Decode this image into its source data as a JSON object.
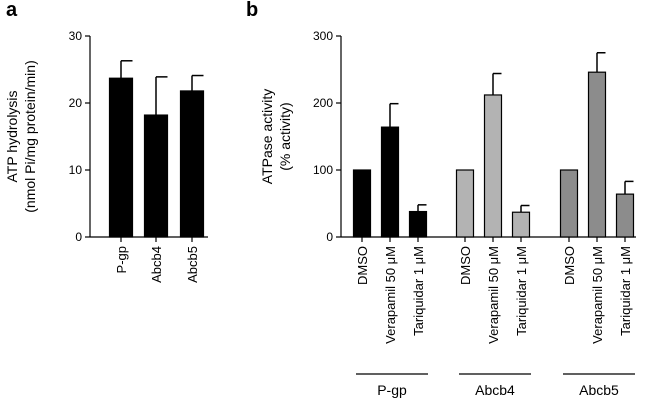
{
  "panels": {
    "a": {
      "letter": "a"
    },
    "b": {
      "letter": "b"
    }
  },
  "chart_data": [
    {
      "type": "bar",
      "panel": "a",
      "ylabel": [
        "ATP hydrolysis",
        "(nmol Pi/mg protein/min)"
      ],
      "ylim": [
        0,
        30
      ],
      "yticks": [
        0,
        10,
        20,
        30
      ],
      "categories": [
        "P-gp",
        "Abcb4",
        "Abcb5"
      ],
      "values": [
        23.7,
        18.2,
        21.8
      ],
      "errors": [
        2.6,
        5.7,
        2.3
      ],
      "colors": [
        "#000000",
        "#000000",
        "#000000"
      ],
      "grid": false
    },
    {
      "type": "bar",
      "panel": "b",
      "ylabel": [
        "ATPase activity",
        "(% activity)"
      ],
      "ylim": [
        0,
        300
      ],
      "yticks": [
        0,
        100,
        200,
        300
      ],
      "groups": [
        {
          "name": "P-gp",
          "color": "#000000",
          "categories": [
            "DMSO",
            "Verapamil 50 μM",
            "Tariquidar 1 μM"
          ],
          "values": [
            100,
            164,
            38
          ],
          "errors": [
            0,
            35,
            10
          ]
        },
        {
          "name": "Abcb4",
          "color": "#b3b3b3",
          "categories": [
            "DMSO",
            "Verapamil 50 μM",
            "Tariquidar 1 μM"
          ],
          "values": [
            100,
            212,
            37
          ],
          "errors": [
            0,
            32,
            10
          ]
        },
        {
          "name": "Abcb5",
          "color": "#8c8c8c",
          "categories": [
            "DMSO",
            "Verapamil 50 μM",
            "Tariquidar 1 μM"
          ],
          "values": [
            100,
            246,
            64
          ],
          "errors": [
            0,
            29,
            19
          ]
        }
      ],
      "grid": false
    }
  ]
}
